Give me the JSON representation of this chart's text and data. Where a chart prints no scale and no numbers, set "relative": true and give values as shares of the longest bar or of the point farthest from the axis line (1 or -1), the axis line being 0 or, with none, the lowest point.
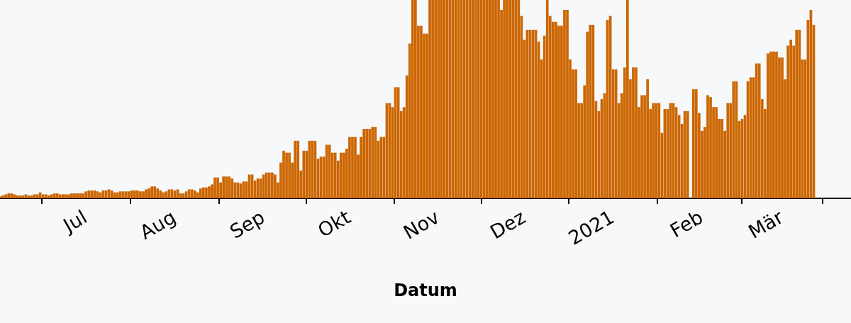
{
  "chart_data": {
    "type": "bar",
    "xlabel": "Datum",
    "relative": true,
    "color": "#cc6600",
    "xlim": [
      "2020-06-01",
      "2021-03-25"
    ],
    "xticks": [
      {
        "value": "2020-07-01",
        "label": "Jul"
      },
      {
        "value": "2020-08-01",
        "label": "Aug"
      },
      {
        "value": "2020-09-01",
        "label": "Sep"
      },
      {
        "value": "2020-10-01",
        "label": "Okt"
      },
      {
        "value": "2020-11-01",
        "label": "Nov"
      },
      {
        "value": "2020-12-01",
        "label": "Dez"
      },
      {
        "value": "2021-01-01",
        "label": "2021"
      },
      {
        "value": "2021-02-01",
        "label": "Feb"
      },
      {
        "value": "2021-03-01",
        "label": "Mär"
      }
    ],
    "x": [
      "2020-06-01",
      "2020-06-02",
      "2020-06-03",
      "2020-06-04",
      "2020-06-05",
      "2020-06-06",
      "2020-06-07",
      "2020-06-08",
      "2020-06-09",
      "2020-06-10",
      "2020-06-11",
      "2020-06-12",
      "2020-06-13",
      "2020-06-14",
      "2020-06-15",
      "2020-06-16",
      "2020-06-17",
      "2020-06-18",
      "2020-06-19",
      "2020-06-20",
      "2020-06-21",
      "2020-06-22",
      "2020-06-23",
      "2020-06-24",
      "2020-06-25",
      "2020-06-26",
      "2020-06-27",
      "2020-06-28",
      "2020-06-29",
      "2020-06-30",
      "2020-07-01",
      "2020-07-02",
      "2020-07-03",
      "2020-07-04",
      "2020-07-05",
      "2020-07-06",
      "2020-07-07",
      "2020-07-08",
      "2020-07-09",
      "2020-07-10",
      "2020-07-11",
      "2020-07-12",
      "2020-07-13",
      "2020-07-14",
      "2020-07-15",
      "2020-07-16",
      "2020-07-17",
      "2020-07-18",
      "2020-07-19",
      "2020-07-20",
      "2020-07-21",
      "2020-07-22",
      "2020-07-23",
      "2020-07-24",
      "2020-07-25",
      "2020-07-26",
      "2020-07-27",
      "2020-07-28",
      "2020-07-29",
      "2020-07-30",
      "2020-07-31",
      "2020-08-01",
      "2020-08-02",
      "2020-08-03",
      "2020-08-04",
      "2020-08-05",
      "2020-08-06",
      "2020-08-07",
      "2020-08-08",
      "2020-08-09",
      "2020-08-10",
      "2020-08-11",
      "2020-08-12",
      "2020-08-13",
      "2020-08-14",
      "2020-08-15",
      "2020-08-16",
      "2020-08-17",
      "2020-08-18",
      "2020-08-19",
      "2020-08-20",
      "2020-08-21",
      "2020-08-22",
      "2020-08-23",
      "2020-08-24",
      "2020-08-25",
      "2020-08-26",
      "2020-08-27",
      "2020-08-28",
      "2020-08-29",
      "2020-08-30",
      "2020-08-31",
      "2020-09-01",
      "2020-09-02",
      "2020-09-03",
      "2020-09-04",
      "2020-09-05",
      "2020-09-06",
      "2020-09-07",
      "2020-09-08",
      "2020-09-09",
      "2020-09-10",
      "2020-09-11",
      "2020-09-12",
      "2020-09-13",
      "2020-09-14",
      "2020-09-15",
      "2020-09-16",
      "2020-09-17",
      "2020-09-18",
      "2020-09-19",
      "2020-09-20",
      "2020-09-21",
      "2020-09-22",
      "2020-09-23",
      "2020-09-24",
      "2020-09-25",
      "2020-09-26",
      "2020-09-27",
      "2020-09-28",
      "2020-09-29",
      "2020-09-30",
      "2020-10-01",
      "2020-10-02",
      "2020-10-03",
      "2020-10-04",
      "2020-10-05",
      "2020-10-06",
      "2020-10-07",
      "2020-10-08",
      "2020-10-09",
      "2020-10-10",
      "2020-10-11",
      "2020-10-12",
      "2020-10-13",
      "2020-10-14",
      "2020-10-15",
      "2020-10-16",
      "2020-10-17",
      "2020-10-18",
      "2020-10-19",
      "2020-10-20",
      "2020-10-21",
      "2020-10-22",
      "2020-10-23",
      "2020-10-24",
      "2020-10-25",
      "2020-10-26",
      "2020-10-27",
      "2020-10-28",
      "2020-10-29",
      "2020-10-30",
      "2020-10-31",
      "2020-11-01",
      "2020-11-02",
      "2020-11-03",
      "2020-11-04",
      "2020-11-05",
      "2020-11-06",
      "2020-11-07",
      "2020-11-08",
      "2020-11-09",
      "2020-11-10",
      "2020-11-11",
      "2020-11-12",
      "2020-11-13",
      "2020-11-14",
      "2020-11-15",
      "2020-11-16",
      "2020-11-17",
      "2020-11-18",
      "2020-11-19",
      "2020-11-20",
      "2020-11-21",
      "2020-11-22",
      "2020-11-23",
      "2020-11-24",
      "2020-11-25",
      "2020-11-26",
      "2020-11-27",
      "2020-11-28",
      "2020-11-29",
      "2020-11-30",
      "2020-12-01",
      "2020-12-02",
      "2020-12-03",
      "2020-12-04",
      "2020-12-05",
      "2020-12-06",
      "2020-12-07",
      "2020-12-08",
      "2020-12-09",
      "2020-12-10",
      "2020-12-11",
      "2020-12-12",
      "2020-12-13",
      "2020-12-14",
      "2020-12-15",
      "2020-12-16",
      "2020-12-17",
      "2020-12-18",
      "2020-12-19",
      "2020-12-20",
      "2020-12-21",
      "2020-12-22",
      "2020-12-23",
      "2020-12-24",
      "2020-12-25",
      "2020-12-26",
      "2020-12-27",
      "2020-12-28",
      "2020-12-29",
      "2020-12-30",
      "2020-12-31",
      "2021-01-01",
      "2021-01-02",
      "2021-01-03",
      "2021-01-04",
      "2021-01-05",
      "2021-01-06",
      "2021-01-07",
      "2021-01-08",
      "2021-01-09",
      "2021-01-10",
      "2021-01-11",
      "2021-01-12",
      "2021-01-13",
      "2021-01-14",
      "2021-01-15",
      "2021-01-16",
      "2021-01-17",
      "2021-01-18",
      "2021-01-19",
      "2021-01-20",
      "2021-01-21",
      "2021-01-22",
      "2021-01-23",
      "2021-01-24",
      "2021-01-25",
      "2021-01-26",
      "2021-01-27",
      "2021-01-28",
      "2021-01-29",
      "2021-01-30",
      "2021-01-31",
      "2021-02-01",
      "2021-02-02",
      "2021-02-03",
      "2021-02-04",
      "2021-02-05",
      "2021-02-06",
      "2021-02-07",
      "2021-02-08",
      "2021-02-09",
      "2021-02-10",
      "2021-02-11",
      "2021-02-12",
      "2021-02-13",
      "2021-02-14",
      "2021-02-15",
      "2021-02-16",
      "2021-02-17",
      "2021-02-18",
      "2021-02-19",
      "2021-02-20",
      "2021-02-21",
      "2021-02-22",
      "2021-02-23",
      "2021-02-24",
      "2021-02-25",
      "2021-02-26",
      "2021-02-27",
      "2021-02-28",
      "2021-03-01",
      "2021-03-02",
      "2021-03-03",
      "2021-03-04",
      "2021-03-05",
      "2021-03-06",
      "2021-03-07",
      "2021-03-08",
      "2021-03-09",
      "2021-03-10",
      "2021-03-11",
      "2021-03-12"
    ],
    "values": [
      0.01,
      0.015,
      0.02,
      0.025,
      0.025,
      0.02,
      0.015,
      0.015,
      0.015,
      0.02,
      0.015,
      0.015,
      0.02,
      0.02,
      0.03,
      0.02,
      0.02,
      0.015,
      0.02,
      0.025,
      0.025,
      0.02,
      0.02,
      0.02,
      0.02,
      0.025,
      0.025,
      0.025,
      0.025,
      0.025,
      0.035,
      0.04,
      0.04,
      0.04,
      0.035,
      0.03,
      0.04,
      0.04,
      0.045,
      0.04,
      0.03,
      0.03,
      0.035,
      0.035,
      0.035,
      0.035,
      0.04,
      0.04,
      0.04,
      0.035,
      0.035,
      0.045,
      0.05,
      0.06,
      0.06,
      0.05,
      0.04,
      0.03,
      0.035,
      0.045,
      0.045,
      0.04,
      0.045,
      0.025,
      0.025,
      0.035,
      0.045,
      0.045,
      0.04,
      0.03,
      0.05,
      0.055,
      0.055,
      0.06,
      0.07,
      0.105,
      0.105,
      0.08,
      0.11,
      0.11,
      0.11,
      0.1,
      0.08,
      0.08,
      0.075,
      0.085,
      0.085,
      0.12,
      0.12,
      0.09,
      0.1,
      0.1,
      0.12,
      0.13,
      0.13,
      0.13,
      0.12,
      0.08,
      0.18,
      0.24,
      0.23,
      0.23,
      0.18,
      0.29,
      0.29,
      0.14,
      0.24,
      0.24,
      0.29,
      0.29,
      0.29,
      0.2,
      0.21,
      0.21,
      0.27,
      0.27,
      0.23,
      0.23,
      0.19,
      0.23,
      0.23,
      0.25,
      0.31,
      0.31,
      0.31,
      0.22,
      0.31,
      0.35,
      0.35,
      0.35,
      0.36,
      0.36,
      0.29,
      0.31,
      0.31,
      0.48,
      0.48,
      0.46,
      0.56,
      0.56,
      0.44,
      0.46,
      0.62,
      0.78,
      1,
      1,
      0.87,
      0.87,
      0.83,
      0.83,
      1,
      1,
      1,
      1,
      1,
      1,
      1,
      1,
      1,
      1,
      1,
      1,
      1,
      1,
      1,
      1,
      1,
      1,
      1,
      1,
      1,
      1,
      1,
      1,
      1,
      0.95,
      1,
      1,
      1,
      1,
      1,
      1,
      0.92,
      0.8,
      0.85,
      0.85,
      0.85,
      0.85,
      0.79,
      0.7,
      0.82,
      1,
      0.92,
      0.89,
      0.89,
      0.87,
      0.87,
      0.95,
      0.95,
      0.7,
      0.65,
      0.65,
      0.48,
      0.48,
      0.57,
      0.84,
      0.875,
      0.875,
      0.49,
      0.44,
      0.5,
      0.53,
      0.9,
      0.92,
      0.65,
      0.65,
      0.48,
      0.53,
      0.66,
      1,
      0.6,
      0.66,
      0.66,
      0.46,
      0.52,
      0.52,
      0.6,
      0.45,
      0.48,
      0.48,
      0.48,
      0.33,
      0.45,
      0.45,
      0.48,
      0.48,
      0.46,
      0.42,
      0.375,
      0.44,
      0.44,
      0,
      0.55,
      0.55,
      0.43,
      0.34,
      0.36,
      0.52,
      0.51,
      0.46,
      0.46,
      0.4,
      0.4,
      0.34,
      0.48,
      0.48,
      0.59,
      0.59,
      0.39,
      0.4,
      0.42,
      0.59,
      0.61,
      0.61,
      0.68,
      0.68,
      0.5,
      0.45,
      0.73,
      0.74,
      0.74,
      0.74,
      0.71,
      0.71,
      0.6,
      0.77,
      0.8,
      0.77,
      0.85,
      0.85,
      0.7,
      0.7,
      0.9,
      0.95,
      0.875
    ]
  }
}
